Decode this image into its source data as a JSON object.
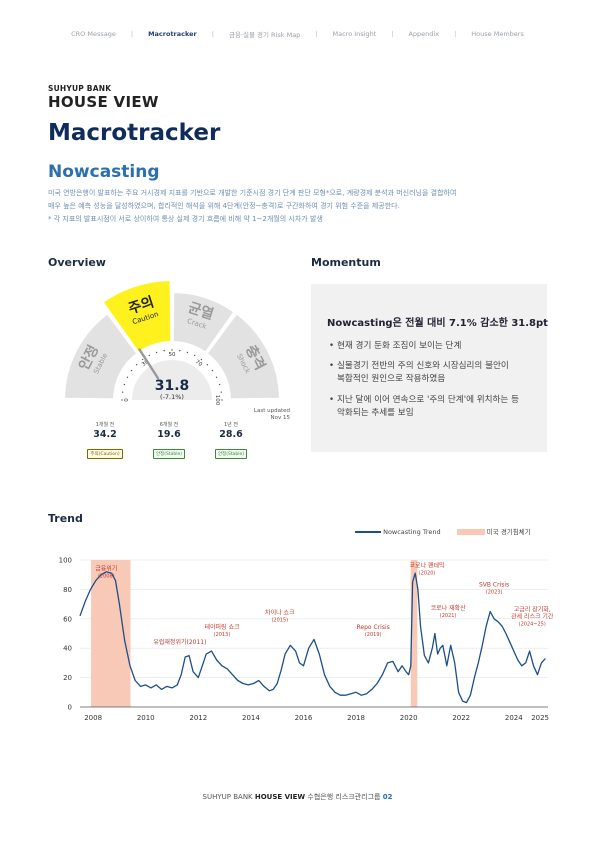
{
  "nav": {
    "items": [
      {
        "label": "CRO Message",
        "active": false
      },
      {
        "label": "Macrotracker",
        "active": true
      },
      {
        "label": "금융·실물 경기 Risk Map",
        "active": false
      },
      {
        "label": "Macro Insight",
        "active": false
      },
      {
        "label": "Appendix",
        "active": false
      },
      {
        "label": "House Members",
        "active": false
      }
    ],
    "separator": "|"
  },
  "brand": {
    "small": "SUHYUP BANK",
    "big": "HOUSE VIEW"
  },
  "page_title": "Macrotracker",
  "section_title": "Nowcasting",
  "description": [
    "미국 연방은행이 발표하는 주요 거시경제 지표를 기반으로 개발한 기준시점 경기 단계 판단 모형*으로, 계량경제 분석과 머신러닝을 결합하여",
    "매우 높은 예측 성능을 달성하였으며, 합리적인 해석을 위해 4단계(안정~충격)로 구간화하여 경기 위험 수준을 제공한다.",
    "* 각 지표의 발표시점이 서로 상이하여 통상 실제 경기 흐름에 비해 약 1~2개월의 시차가 발생"
  ],
  "overview": {
    "heading": "Overview",
    "value": "31.8",
    "change": "(-7.1%)",
    "zones": [
      {
        "ko": "안정",
        "en": "Stable",
        "color": "#e2e2e2",
        "text_color": "#9a9a9a"
      },
      {
        "ko": "주의",
        "en": "Caution",
        "color": "#fff11d",
        "text_color": "#222222"
      },
      {
        "ko": "균열",
        "en": "Crack",
        "color": "#e2e2e2",
        "text_color": "#9a9a9a"
      },
      {
        "ko": "충격",
        "en": "Shock",
        "color": "#e2e2e2",
        "text_color": "#9a9a9a"
      }
    ],
    "scale_labels": [
      "0",
      "30",
      "50",
      "70",
      "100"
    ],
    "needle_value": 31.8,
    "last_updated": [
      "Last updated",
      "Nov 15"
    ],
    "stats": [
      {
        "label": "1개월 전",
        "value": "34.2",
        "tag": "주의(Caution)"
      },
      {
        "label": "6개월 전",
        "value": "19.6",
        "tag": "안정(Stable)"
      },
      {
        "label": "1년 전",
        "value": "28.6",
        "tag": "안정(Stable)"
      }
    ]
  },
  "momentum": {
    "heading": "Momentum",
    "headline": "Nowcasting은 전월 대비 7.1% 감소한 31.8pt",
    "bullets": [
      [
        "현재 경기 둔화 조짐이 보이는 단계"
      ],
      [
        "실물경기 전반의 주의 신호와 시장심리의 불안이",
        "복합적인 원인으로 작용하였음"
      ],
      [
        "지난 달에 이어 연속으로 '주의 단계'에 위치하는 등",
        "악화되는 추세를 보임"
      ]
    ],
    "bullet_char": "•"
  },
  "trend": {
    "heading": "Trend",
    "legend_line": "Nowcasting Trend",
    "legend_recession": "미국 경기침체기"
  },
  "chart_data": {
    "type": "line",
    "xlim": [
      2007.5,
      2025.3
    ],
    "ylim": [
      0,
      100
    ],
    "yticks": [
      0,
      20,
      40,
      60,
      80,
      100
    ],
    "xticks": [
      2008,
      2010,
      2012,
      2014,
      2016,
      2018,
      2020,
      2022,
      2024,
      2025
    ],
    "line_color": "#1b4f8a",
    "recession_color": "#f7c9b6",
    "recessions": [
      [
        2007.92,
        2009.42
      ],
      [
        2020.08,
        2020.33
      ]
    ],
    "series": [
      {
        "name": "Nowcasting Trend",
        "x": [
          2007.5,
          2007.7,
          2007.9,
          2008.1,
          2008.3,
          2008.5,
          2008.7,
          2008.85,
          2009.0,
          2009.2,
          2009.4,
          2009.6,
          2009.8,
          2010.0,
          2010.2,
          2010.4,
          2010.6,
          2010.8,
          2011.0,
          2011.2,
          2011.35,
          2011.5,
          2011.65,
          2011.8,
          2012.0,
          2012.15,
          2012.3,
          2012.5,
          2012.7,
          2012.9,
          2013.1,
          2013.3,
          2013.5,
          2013.7,
          2013.9,
          2014.1,
          2014.3,
          2014.5,
          2014.7,
          2014.85,
          2015.0,
          2015.15,
          2015.3,
          2015.5,
          2015.7,
          2015.85,
          2016.0,
          2016.2,
          2016.4,
          2016.6,
          2016.8,
          2017.0,
          2017.2,
          2017.4,
          2017.6,
          2017.8,
          2018.0,
          2018.2,
          2018.4,
          2018.6,
          2018.8,
          2019.0,
          2019.2,
          2019.4,
          2019.6,
          2019.75,
          2019.9,
          2020.0,
          2020.08,
          2020.15,
          2020.25,
          2020.35,
          2020.45,
          2020.6,
          2020.75,
          2020.9,
          2021.0,
          2021.1,
          2021.2,
          2021.3,
          2021.45,
          2021.6,
          2021.75,
          2021.9,
          2022.05,
          2022.2,
          2022.35,
          2022.5,
          2022.65,
          2022.8,
          2022.95,
          2023.1,
          2023.25,
          2023.4,
          2023.55,
          2023.7,
          2023.85,
          2024.0,
          2024.15,
          2024.3,
          2024.45,
          2024.6,
          2024.75,
          2024.9,
          2025.05,
          2025.2
        ],
        "values": [
          62,
          72,
          80,
          86,
          90,
          92,
          91,
          86,
          70,
          45,
          28,
          18,
          14,
          15,
          13,
          15,
          12,
          14,
          13,
          15,
          22,
          34,
          35,
          24,
          20,
          28,
          36,
          38,
          32,
          28,
          26,
          22,
          18,
          16,
          15,
          16,
          18,
          14,
          11,
          12,
          16,
          25,
          36,
          42,
          38,
          30,
          28,
          40,
          46,
          36,
          22,
          14,
          10,
          8,
          8,
          9,
          10,
          8,
          9,
          12,
          16,
          22,
          30,
          31,
          24,
          28,
          24,
          22,
          28,
          85,
          91,
          80,
          55,
          35,
          30,
          40,
          50,
          36,
          40,
          42,
          28,
          42,
          30,
          10,
          4,
          3,
          8,
          20,
          30,
          42,
          55,
          65,
          60,
          58,
          55,
          50,
          44,
          38,
          32,
          28,
          30,
          38,
          28,
          22,
          30,
          33
        ]
      }
    ],
    "annotations": [
      {
        "x": 2008.5,
        "y": 93,
        "text": [
          "금융위기",
          "(2008)"
        ]
      },
      {
        "x": 2011.3,
        "y": 43,
        "text": [
          "유럽재정위기(2011)"
        ]
      },
      {
        "x": 2012.9,
        "y": 53,
        "text": [
          "테이퍼링 쇼크",
          "(2013)"
        ]
      },
      {
        "x": 2015.1,
        "y": 63,
        "text": [
          "차이나 쇼크",
          "(2015)"
        ]
      },
      {
        "x": 2018.65,
        "y": 53,
        "text": [
          "Repo Crisis",
          "(2019)"
        ]
      },
      {
        "x": 2020.7,
        "y": 95,
        "text": [
          "코로나 팬데믹",
          "(2020)"
        ]
      },
      {
        "x": 2021.5,
        "y": 66,
        "text": [
          "코로나 재확산",
          "(2021)"
        ]
      },
      {
        "x": 2023.25,
        "y": 82,
        "text": [
          "SVB Crisis",
          "(2023)"
        ]
      },
      {
        "x": 2024.7,
        "y": 65,
        "text": [
          "고금리 장기화,",
          "관세 리스크 기간",
          "(2024~25)"
        ]
      }
    ],
    "legend": "top-right"
  },
  "footer": {
    "brand": "SUHYUP BANK",
    "brand_bold": "HOUSE VIEW",
    "dept": "수협은행 리스크관리그룹",
    "page": "02"
  }
}
